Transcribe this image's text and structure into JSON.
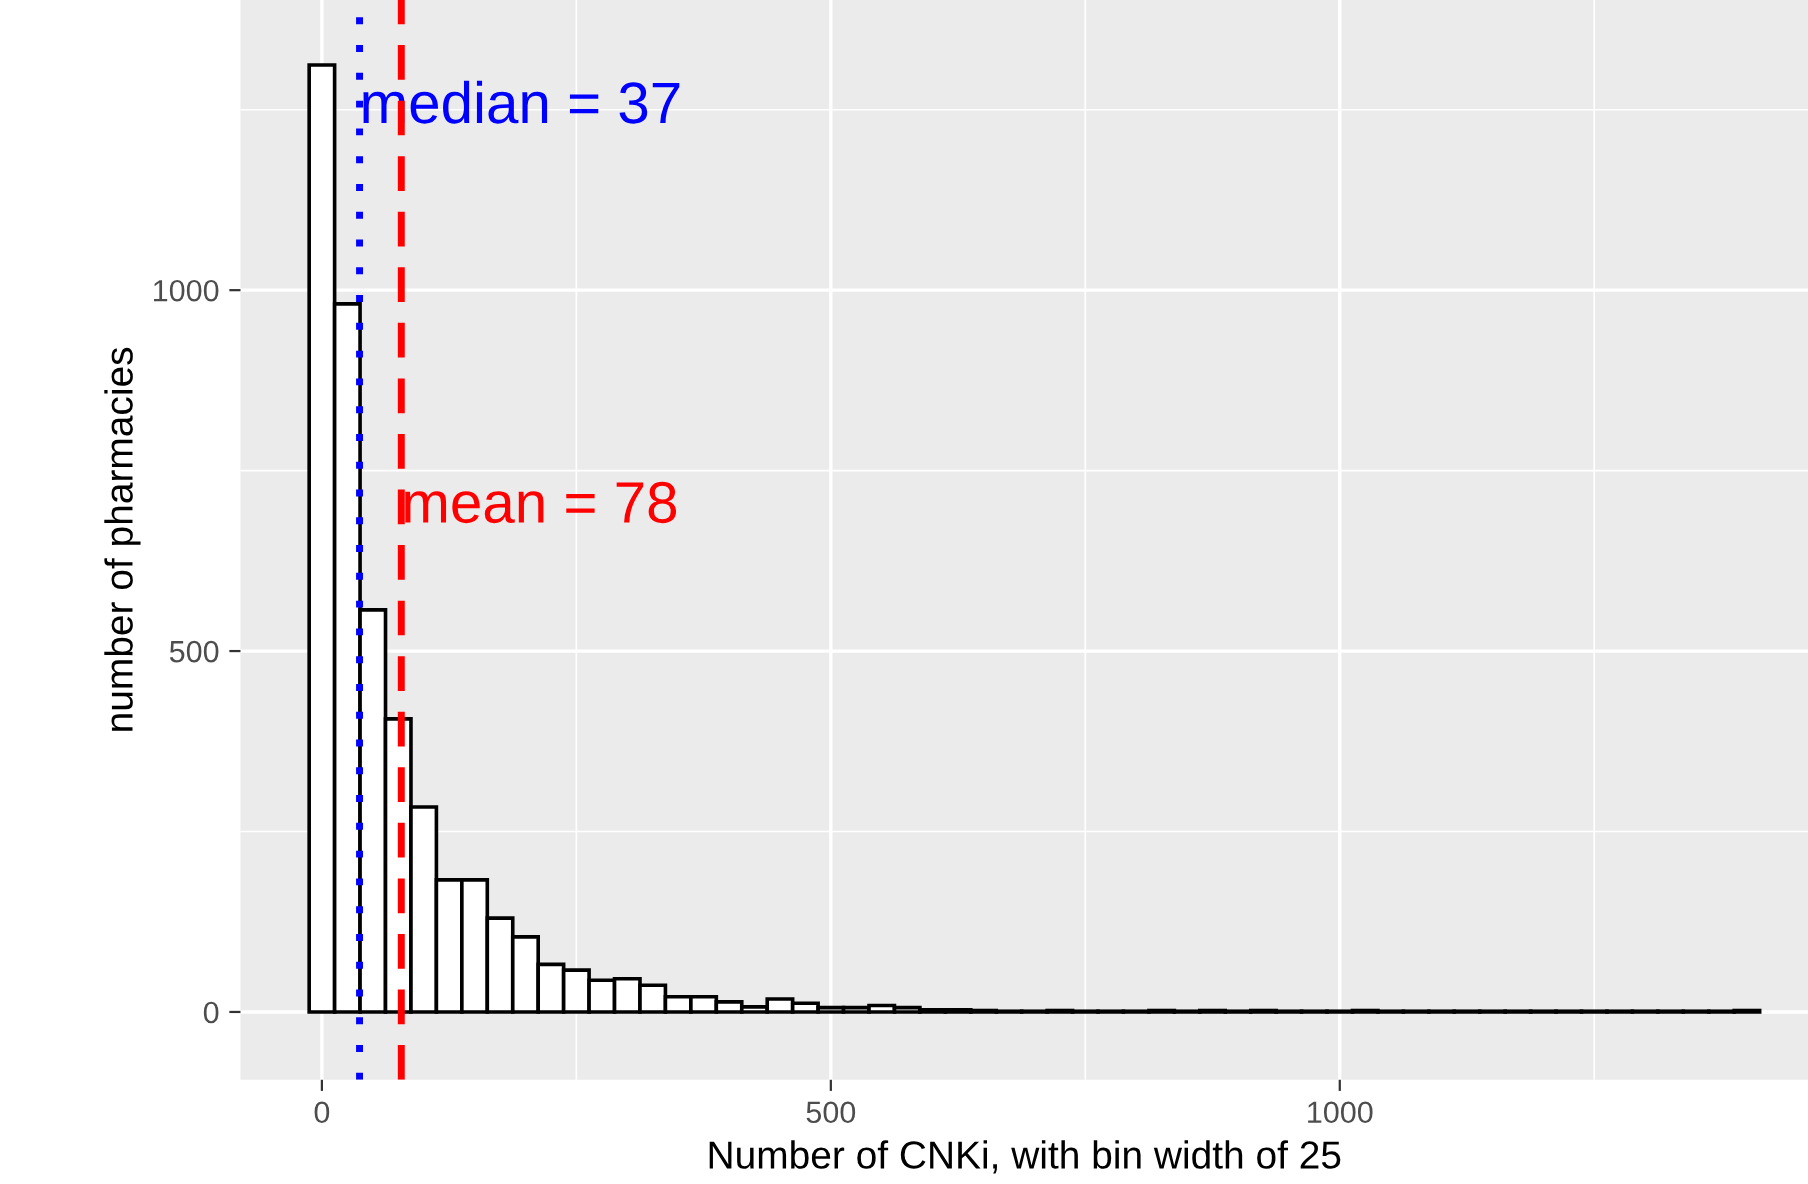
{
  "chart_data": {
    "type": "histogram",
    "xlabel": "Number of CNKi, with bin width of 25",
    "ylabel": "number of pharmacies",
    "bins": [
      -12.5,
      12.5,
      37.5,
      62.5,
      87.5,
      112.5,
      137.5,
      162.5,
      187.5,
      212.5,
      237.5,
      262.5,
      287.5,
      312.5,
      337.5,
      362.5,
      387.5,
      412.5,
      437.5,
      462.5,
      487.5,
      512.5,
      537.5,
      562.5,
      587.5,
      612.5,
      637.5,
      662.5,
      687.5,
      712.5,
      737.5,
      762.5,
      787.5,
      812.5,
      837.5,
      862.5,
      887.5,
      912.5,
      937.5,
      962.5,
      987.5,
      1012.5,
      1037.5,
      1062.5,
      1087.5,
      1112.5,
      1137.5,
      1162.5,
      1187.5,
      1212.5,
      1237.5,
      1262.5,
      1287.5,
      1312.5,
      1337.5,
      1362.5,
      1387.5,
      1412.5
    ],
    "values": [
      1312,
      981,
      557,
      406,
      284,
      183,
      183,
      130,
      104,
      66,
      58,
      44,
      46,
      37,
      21,
      21,
      14,
      7,
      18,
      12,
      6,
      6,
      9,
      6,
      3,
      3,
      2,
      1,
      1,
      2,
      1,
      1,
      1,
      2,
      1,
      2,
      1,
      2,
      1,
      1,
      1,
      2,
      1,
      1,
      1,
      1,
      1,
      1,
      1,
      1,
      1,
      1,
      1,
      1,
      1,
      1,
      2
    ],
    "color": "#ffffff",
    "xlim": [
      -80,
      1460
    ],
    "ylim": [
      -94,
      1402
    ],
    "xticks": [
      0,
      500,
      1000
    ],
    "yticks": [
      0,
      500,
      1000
    ],
    "grid": true,
    "ref_lines": [
      {
        "axis": "x",
        "value": 37,
        "label": "median = 37",
        "color": "#0000ff",
        "line_style": "dotted"
      },
      {
        "axis": "x",
        "value": 78,
        "label": "mean = 78",
        "color": "#ff0000",
        "line_style": "dashed"
      }
    ]
  }
}
